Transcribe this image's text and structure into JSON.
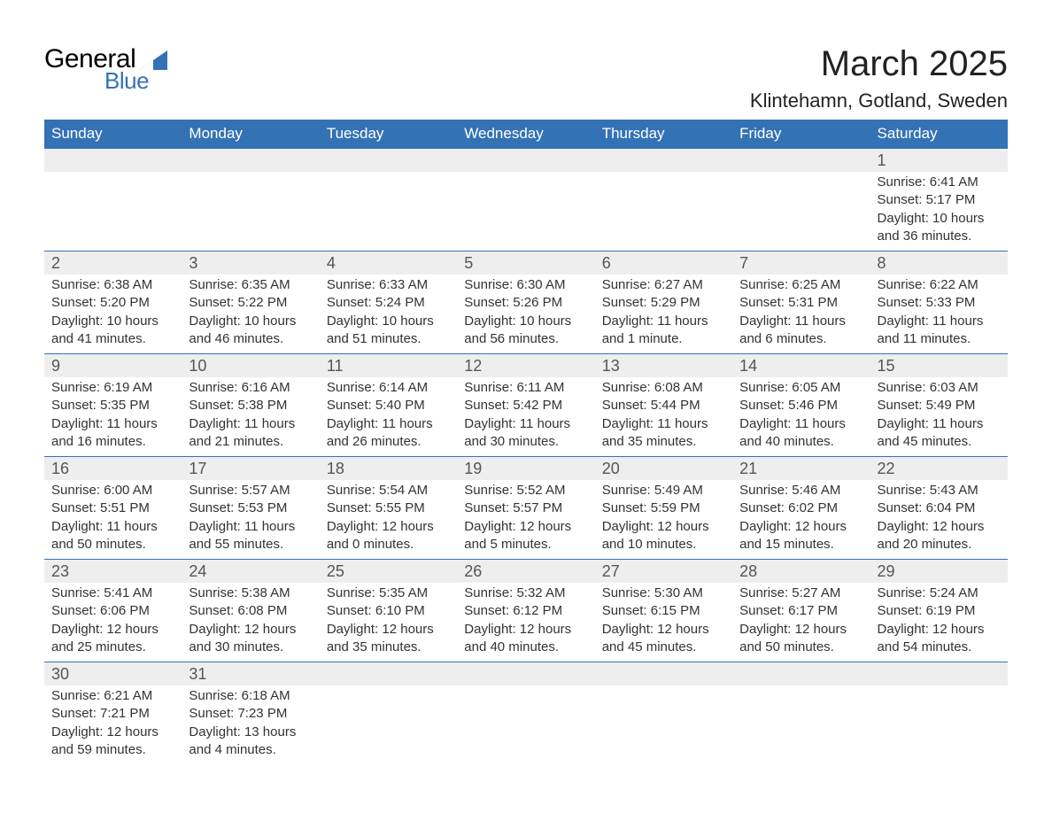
{
  "logo": {
    "word1": "General",
    "word2": "Blue",
    "tri_color": "#3472b6"
  },
  "title": "March 2025",
  "subtitle": "Klintehamn, Gotland, Sweden",
  "colors": {
    "header_bg": "#3472b6",
    "header_fg": "#ffffff",
    "daynum_bg": "#eeeeee",
    "daynum_fg": "#555555",
    "body_fg": "#333333",
    "rule": "#3472b6",
    "page_bg": "#ffffff"
  },
  "typography": {
    "title_fontsize": 40,
    "subtitle_fontsize": 22,
    "header_fontsize": 17,
    "daynum_fontsize": 18,
    "cell_fontsize": 15
  },
  "calendar": {
    "columns": [
      "Sunday",
      "Monday",
      "Tuesday",
      "Wednesday",
      "Thursday",
      "Friday",
      "Saturday"
    ],
    "weeks": [
      [
        null,
        null,
        null,
        null,
        null,
        null,
        {
          "day": "1",
          "sunrise": "Sunrise: 6:41 AM",
          "sunset": "Sunset: 5:17 PM",
          "daylight": "Daylight: 10 hours and 36 minutes."
        }
      ],
      [
        {
          "day": "2",
          "sunrise": "Sunrise: 6:38 AM",
          "sunset": "Sunset: 5:20 PM",
          "daylight": "Daylight: 10 hours and 41 minutes."
        },
        {
          "day": "3",
          "sunrise": "Sunrise: 6:35 AM",
          "sunset": "Sunset: 5:22 PM",
          "daylight": "Daylight: 10 hours and 46 minutes."
        },
        {
          "day": "4",
          "sunrise": "Sunrise: 6:33 AM",
          "sunset": "Sunset: 5:24 PM",
          "daylight": "Daylight: 10 hours and 51 minutes."
        },
        {
          "day": "5",
          "sunrise": "Sunrise: 6:30 AM",
          "sunset": "Sunset: 5:26 PM",
          "daylight": "Daylight: 10 hours and 56 minutes."
        },
        {
          "day": "6",
          "sunrise": "Sunrise: 6:27 AM",
          "sunset": "Sunset: 5:29 PM",
          "daylight": "Daylight: 11 hours and 1 minute."
        },
        {
          "day": "7",
          "sunrise": "Sunrise: 6:25 AM",
          "sunset": "Sunset: 5:31 PM",
          "daylight": "Daylight: 11 hours and 6 minutes."
        },
        {
          "day": "8",
          "sunrise": "Sunrise: 6:22 AM",
          "sunset": "Sunset: 5:33 PM",
          "daylight": "Daylight: 11 hours and 11 minutes."
        }
      ],
      [
        {
          "day": "9",
          "sunrise": "Sunrise: 6:19 AM",
          "sunset": "Sunset: 5:35 PM",
          "daylight": "Daylight: 11 hours and 16 minutes."
        },
        {
          "day": "10",
          "sunrise": "Sunrise: 6:16 AM",
          "sunset": "Sunset: 5:38 PM",
          "daylight": "Daylight: 11 hours and 21 minutes."
        },
        {
          "day": "11",
          "sunrise": "Sunrise: 6:14 AM",
          "sunset": "Sunset: 5:40 PM",
          "daylight": "Daylight: 11 hours and 26 minutes."
        },
        {
          "day": "12",
          "sunrise": "Sunrise: 6:11 AM",
          "sunset": "Sunset: 5:42 PM",
          "daylight": "Daylight: 11 hours and 30 minutes."
        },
        {
          "day": "13",
          "sunrise": "Sunrise: 6:08 AM",
          "sunset": "Sunset: 5:44 PM",
          "daylight": "Daylight: 11 hours and 35 minutes."
        },
        {
          "day": "14",
          "sunrise": "Sunrise: 6:05 AM",
          "sunset": "Sunset: 5:46 PM",
          "daylight": "Daylight: 11 hours and 40 minutes."
        },
        {
          "day": "15",
          "sunrise": "Sunrise: 6:03 AM",
          "sunset": "Sunset: 5:49 PM",
          "daylight": "Daylight: 11 hours and 45 minutes."
        }
      ],
      [
        {
          "day": "16",
          "sunrise": "Sunrise: 6:00 AM",
          "sunset": "Sunset: 5:51 PM",
          "daylight": "Daylight: 11 hours and 50 minutes."
        },
        {
          "day": "17",
          "sunrise": "Sunrise: 5:57 AM",
          "sunset": "Sunset: 5:53 PM",
          "daylight": "Daylight: 11 hours and 55 minutes."
        },
        {
          "day": "18",
          "sunrise": "Sunrise: 5:54 AM",
          "sunset": "Sunset: 5:55 PM",
          "daylight": "Daylight: 12 hours and 0 minutes."
        },
        {
          "day": "19",
          "sunrise": "Sunrise: 5:52 AM",
          "sunset": "Sunset: 5:57 PM",
          "daylight": "Daylight: 12 hours and 5 minutes."
        },
        {
          "day": "20",
          "sunrise": "Sunrise: 5:49 AM",
          "sunset": "Sunset: 5:59 PM",
          "daylight": "Daylight: 12 hours and 10 minutes."
        },
        {
          "day": "21",
          "sunrise": "Sunrise: 5:46 AM",
          "sunset": "Sunset: 6:02 PM",
          "daylight": "Daylight: 12 hours and 15 minutes."
        },
        {
          "day": "22",
          "sunrise": "Sunrise: 5:43 AM",
          "sunset": "Sunset: 6:04 PM",
          "daylight": "Daylight: 12 hours and 20 minutes."
        }
      ],
      [
        {
          "day": "23",
          "sunrise": "Sunrise: 5:41 AM",
          "sunset": "Sunset: 6:06 PM",
          "daylight": "Daylight: 12 hours and 25 minutes."
        },
        {
          "day": "24",
          "sunrise": "Sunrise: 5:38 AM",
          "sunset": "Sunset: 6:08 PM",
          "daylight": "Daylight: 12 hours and 30 minutes."
        },
        {
          "day": "25",
          "sunrise": "Sunrise: 5:35 AM",
          "sunset": "Sunset: 6:10 PM",
          "daylight": "Daylight: 12 hours and 35 minutes."
        },
        {
          "day": "26",
          "sunrise": "Sunrise: 5:32 AM",
          "sunset": "Sunset: 6:12 PM",
          "daylight": "Daylight: 12 hours and 40 minutes."
        },
        {
          "day": "27",
          "sunrise": "Sunrise: 5:30 AM",
          "sunset": "Sunset: 6:15 PM",
          "daylight": "Daylight: 12 hours and 45 minutes."
        },
        {
          "day": "28",
          "sunrise": "Sunrise: 5:27 AM",
          "sunset": "Sunset: 6:17 PM",
          "daylight": "Daylight: 12 hours and 50 minutes."
        },
        {
          "day": "29",
          "sunrise": "Sunrise: 5:24 AM",
          "sunset": "Sunset: 6:19 PM",
          "daylight": "Daylight: 12 hours and 54 minutes."
        }
      ],
      [
        {
          "day": "30",
          "sunrise": "Sunrise: 6:21 AM",
          "sunset": "Sunset: 7:21 PM",
          "daylight": "Daylight: 12 hours and 59 minutes."
        },
        {
          "day": "31",
          "sunrise": "Sunrise: 6:18 AM",
          "sunset": "Sunset: 7:23 PM",
          "daylight": "Daylight: 13 hours and 4 minutes."
        },
        null,
        null,
        null,
        null,
        null
      ]
    ]
  }
}
